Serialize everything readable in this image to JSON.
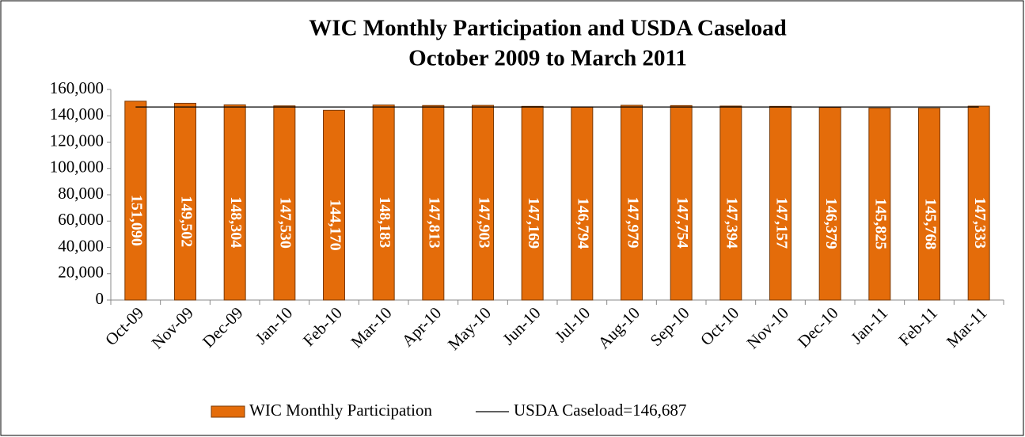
{
  "chart_data": {
    "type": "bar",
    "title": "WIC Monthly Participation and USDA Caseload",
    "subtitle": "October 2009 to March 2011",
    "categories": [
      "Oct-09",
      "Nov-09",
      "Dec-09",
      "Jan-10",
      "Feb-10",
      "Mar-10",
      "Apr-10",
      "May-10",
      "Jun-10",
      "Jul-10",
      "Aug-10",
      "Sep-10",
      "Oct-10",
      "Nov-10",
      "Dec-10",
      "Jan-11",
      "Feb-11",
      "Mar-11"
    ],
    "series": [
      {
        "name": "WIC Monthly Participation",
        "color": "#e46c0a",
        "type": "bar",
        "values": [
          151090,
          149502,
          148304,
          147530,
          144170,
          148183,
          147813,
          147903,
          147169,
          146794,
          147979,
          147754,
          147394,
          147157,
          146379,
          145825,
          145768,
          147333
        ],
        "value_labels": [
          "151,090",
          "149,502",
          "148,304",
          "147,530",
          "144,170",
          "148,183",
          "147,813",
          "147,903",
          "147,169",
          "146,794",
          "147,979",
          "147,754",
          "147,394",
          "147,157",
          "146,379",
          "145,825",
          "145,768",
          "147,333"
        ]
      },
      {
        "name": "USDA Caseload=146,687",
        "color": "#000000",
        "type": "line",
        "values": [
          146687,
          146687,
          146687,
          146687,
          146687,
          146687,
          146687,
          146687,
          146687,
          146687,
          146687,
          146687,
          146687,
          146687,
          146687,
          146687,
          146687,
          146687
        ]
      }
    ],
    "ylim": [
      0,
      160000
    ],
    "yticks": [
      0,
      {
        "value": 20000,
        "label": "20,000"
      },
      {
        "value": 40000,
        "label": "40,000"
      },
      {
        "value": 60000,
        "label": "60,000"
      },
      {
        "value": 80000,
        "label": "80,000"
      },
      {
        "value": 100000,
        "label": "100,000"
      },
      {
        "value": 120000,
        "label": "120,000"
      },
      {
        "value": 140000,
        "label": "140,000"
      },
      {
        "value": 160000,
        "label": "160,000"
      }
    ],
    "legend": "bottom"
  }
}
